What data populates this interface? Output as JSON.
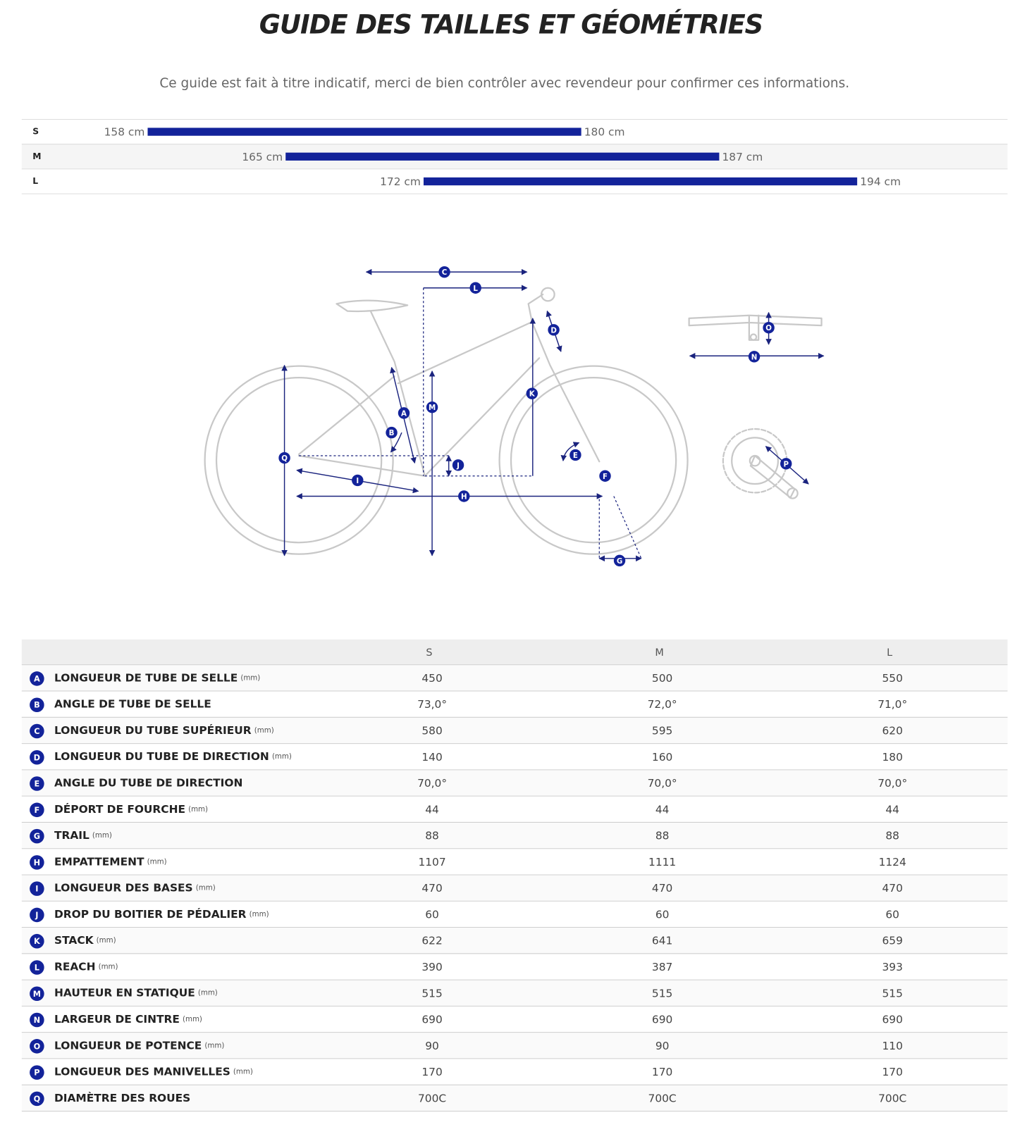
{
  "header": {
    "title": "GUIDE DES TAILLES ET GÉOMÉTRIES",
    "subtitle": "Ce guide est fait à titre indicatif, merci de bien contrôler avec revendeur pour confirmer ces informations."
  },
  "sizes": {
    "rows": [
      {
        "size": "S",
        "min": {
          "value": 158,
          "label": "158 cm"
        },
        "max": {
          "value": 180,
          "label": "180 cm"
        }
      },
      {
        "size": "M",
        "min": {
          "value": 165,
          "label": "165 cm"
        },
        "max": {
          "value": 187,
          "label": "187 cm"
        }
      },
      {
        "size": "L",
        "min": {
          "value": 172,
          "label": "172 cm"
        },
        "max": {
          "value": 194,
          "label": "194 cm"
        }
      }
    ]
  },
  "table": {
    "columns": [
      "S",
      "M",
      "L"
    ],
    "rows": [
      {
        "letter": "A",
        "label": "LONGUEUR DE TUBE DE SELLE",
        "unit": "(mm)",
        "values": [
          "450",
          "500",
          "550"
        ]
      },
      {
        "letter": "B",
        "label": "ANGLE DE TUBE DE SELLE",
        "values": [
          "73,0°",
          "72,0°",
          "71,0°"
        ]
      },
      {
        "letter": "C",
        "label": "LONGUEUR DU TUBE SUPÉRIEUR",
        "unit": "(mm)",
        "values": [
          "580",
          "595",
          "620"
        ]
      },
      {
        "letter": "D",
        "label": "LONGUEUR DU TUBE DE DIRECTION",
        "unit": "(mm)",
        "values": [
          "140",
          "160",
          "180"
        ]
      },
      {
        "letter": "E",
        "label": "ANGLE DU TUBE DE DIRECTION",
        "values": [
          "70,0°",
          "70,0°",
          "70,0°"
        ]
      },
      {
        "letter": "F",
        "label": "DÉPORT DE FOURCHE",
        "unit": "(mm)",
        "values": [
          "44",
          "44",
          "44"
        ]
      },
      {
        "letter": "G",
        "label": "TRAIL",
        "unit": "(mm)",
        "values": [
          "88",
          "88",
          "88"
        ]
      },
      {
        "letter": "H",
        "label": "EMPATTEMENT",
        "unit": "(mm)",
        "values": [
          "1107",
          "1111",
          "1124"
        ]
      },
      {
        "letter": "I",
        "label": "LONGUEUR DES BASES",
        "unit": "(mm)",
        "values": [
          "470",
          "470",
          "470"
        ]
      },
      {
        "letter": "J",
        "label": "DROP DU BOITIER DE PÉDALIER",
        "unit": "(mm)",
        "values": [
          "60",
          "60",
          "60"
        ]
      },
      {
        "letter": "K",
        "label": "STACK",
        "unit": "(mm)",
        "values": [
          "622",
          "641",
          "659"
        ]
      },
      {
        "letter": "L",
        "label": "REACH",
        "unit": "(mm)",
        "values": [
          "390",
          "387",
          "393"
        ]
      },
      {
        "letter": "M",
        "label": "HAUTEUR EN STATIQUE",
        "unit": "(mm)",
        "values": [
          "515",
          "515",
          "515"
        ]
      },
      {
        "letter": "N",
        "label": "LARGEUR DE CINTRE",
        "unit": "(mm)",
        "values": [
          "690",
          "690",
          "690"
        ]
      },
      {
        "letter": "O",
        "label": "LONGUEUR DE POTENCE",
        "unit": "(mm)",
        "values": [
          "90",
          "90",
          "110"
        ]
      },
      {
        "letter": "P",
        "label": "LONGUEUR DES MANIVELLES",
        "unit": "(mm)",
        "values": [
          "170",
          "170",
          "170"
        ]
      },
      {
        "letter": "Q",
        "label": "DIAMÈTRE DES ROUES",
        "values": [
          "700C",
          "700C",
          "700C"
        ]
      }
    ]
  }
}
